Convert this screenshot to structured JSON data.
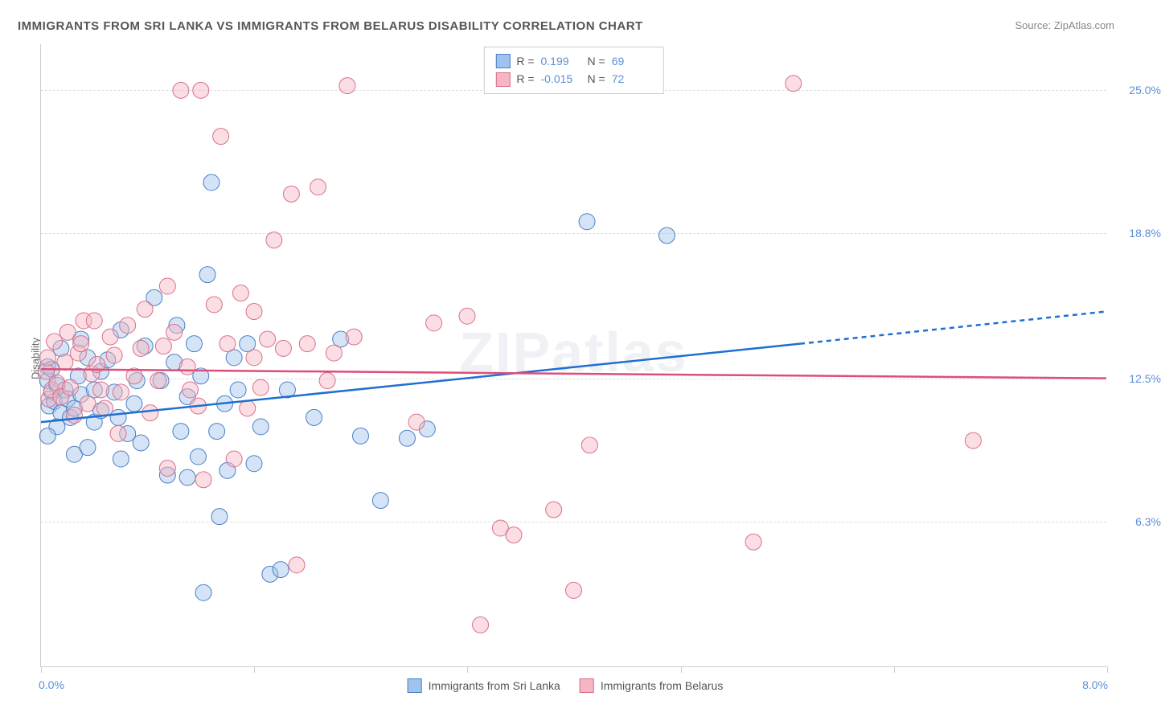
{
  "title": "IMMIGRANTS FROM SRI LANKA VS IMMIGRANTS FROM BELARUS DISABILITY CORRELATION CHART",
  "source": "Source: ZipAtlas.com",
  "y_axis_title": "Disability",
  "watermark": "ZIPatlas",
  "chart": {
    "type": "scatter",
    "background_color": "#ffffff",
    "grid_color": "#dddddd",
    "border_color": "#cccccc",
    "xlim": [
      0.0,
      8.0
    ],
    "ylim": [
      0.0,
      27.0
    ],
    "x_min_label": "0.0%",
    "x_max_label": "8.0%",
    "x_ticks": [
      0.0,
      1.6,
      3.2,
      4.8,
      6.4,
      8.0
    ],
    "y_gridlines": [
      6.3,
      12.5,
      18.8,
      25.0
    ],
    "y_labels": [
      "6.3%",
      "12.5%",
      "18.8%",
      "25.0%"
    ],
    "marker_radius": 10,
    "marker_opacity": 0.45,
    "line_width": 2.5,
    "label_fontsize": 14,
    "title_fontsize": 15,
    "label_color": "#5a8fd6"
  },
  "stats": [
    {
      "r": "0.199",
      "n": "69",
      "fill": "#9fc3ec",
      "stroke": "#4a7fc6"
    },
    {
      "r": "-0.015",
      "n": "72",
      "fill": "#f4b6c2",
      "stroke": "#d96f8a"
    }
  ],
  "series": [
    {
      "name": "Immigrants from Sri Lanka",
      "fill": "#9fc3ec",
      "stroke": "#4a7fc6",
      "line_color": "#1f6fd0",
      "trend": {
        "x1": 0.0,
        "y1": 10.6,
        "x2": 5.7,
        "y2": 14.0,
        "x2_dashed": 8.0,
        "y2_dashed": 15.4
      },
      "points": [
        [
          0.05,
          12.4
        ],
        [
          0.05,
          13.0
        ],
        [
          0.06,
          11.3
        ],
        [
          0.08,
          11.9
        ],
        [
          0.08,
          12.9
        ],
        [
          0.1,
          11.5
        ],
        [
          0.12,
          10.4
        ],
        [
          0.12,
          12.2
        ],
        [
          0.15,
          11.0
        ],
        [
          0.15,
          13.8
        ],
        [
          0.18,
          12.0
        ],
        [
          0.2,
          11.6
        ],
        [
          0.22,
          10.8
        ],
        [
          0.25,
          9.2
        ],
        [
          0.25,
          11.2
        ],
        [
          0.28,
          12.6
        ],
        [
          0.3,
          11.8
        ],
        [
          0.3,
          14.2
        ],
        [
          0.35,
          13.4
        ],
        [
          0.35,
          9.5
        ],
        [
          0.4,
          12.0
        ],
        [
          0.4,
          10.6
        ],
        [
          0.45,
          11.1
        ],
        [
          0.45,
          12.8
        ],
        [
          0.5,
          13.3
        ],
        [
          0.55,
          11.9
        ],
        [
          0.58,
          10.8
        ],
        [
          0.6,
          9.0
        ],
        [
          0.6,
          14.6
        ],
        [
          0.65,
          10.1
        ],
        [
          0.7,
          11.4
        ],
        [
          0.72,
          12.4
        ],
        [
          0.75,
          9.7
        ],
        [
          0.78,
          13.9
        ],
        [
          0.85,
          16.0
        ],
        [
          0.9,
          12.4
        ],
        [
          0.95,
          8.3
        ],
        [
          1.0,
          13.2
        ],
        [
          1.02,
          14.8
        ],
        [
          1.05,
          10.2
        ],
        [
          1.1,
          8.2
        ],
        [
          1.1,
          11.7
        ],
        [
          1.15,
          14.0
        ],
        [
          1.18,
          9.1
        ],
        [
          1.2,
          12.6
        ],
        [
          1.22,
          3.2
        ],
        [
          1.25,
          17.0
        ],
        [
          1.28,
          21.0
        ],
        [
          1.32,
          10.2
        ],
        [
          1.34,
          6.5
        ],
        [
          1.38,
          11.4
        ],
        [
          1.4,
          8.5
        ],
        [
          1.45,
          13.4
        ],
        [
          1.48,
          12.0
        ],
        [
          1.55,
          14.0
        ],
        [
          1.6,
          8.8
        ],
        [
          1.65,
          10.4
        ],
        [
          1.72,
          4.0
        ],
        [
          1.8,
          4.2
        ],
        [
          1.85,
          12.0
        ],
        [
          2.05,
          10.8
        ],
        [
          2.25,
          14.2
        ],
        [
          2.4,
          10.0
        ],
        [
          2.55,
          7.2
        ],
        [
          2.75,
          9.9
        ],
        [
          2.9,
          10.3
        ],
        [
          4.1,
          19.3
        ],
        [
          4.7,
          18.7
        ],
        [
          0.05,
          10.0
        ]
      ]
    },
    {
      "name": "Immigrants from Belarus",
      "fill": "#f4b6c2",
      "stroke": "#d96f8a",
      "line_color": "#de4d7a",
      "trend": {
        "x1": 0.0,
        "y1": 12.9,
        "x2": 8.0,
        "y2": 12.5
      },
      "points": [
        [
          0.04,
          12.8
        ],
        [
          0.05,
          13.4
        ],
        [
          0.06,
          11.6
        ],
        [
          0.08,
          12.0
        ],
        [
          0.1,
          14.1
        ],
        [
          0.12,
          12.3
        ],
        [
          0.15,
          11.7
        ],
        [
          0.18,
          13.2
        ],
        [
          0.2,
          14.5
        ],
        [
          0.22,
          12.1
        ],
        [
          0.25,
          10.9
        ],
        [
          0.28,
          13.6
        ],
        [
          0.3,
          14.0
        ],
        [
          0.32,
          15.0
        ],
        [
          0.35,
          11.4
        ],
        [
          0.38,
          12.7
        ],
        [
          0.42,
          13.1
        ],
        [
          0.45,
          12.0
        ],
        [
          0.48,
          11.2
        ],
        [
          0.52,
          14.3
        ],
        [
          0.55,
          13.5
        ],
        [
          0.58,
          10.1
        ],
        [
          0.6,
          11.9
        ],
        [
          0.65,
          14.8
        ],
        [
          0.7,
          12.6
        ],
        [
          0.75,
          13.8
        ],
        [
          0.78,
          15.5
        ],
        [
          0.82,
          11.0
        ],
        [
          0.88,
          12.4
        ],
        [
          0.92,
          13.9
        ],
        [
          0.95,
          8.6
        ],
        [
          1.0,
          14.5
        ],
        [
          1.05,
          25.0
        ],
        [
          1.1,
          13.0
        ],
        [
          1.12,
          12.0
        ],
        [
          1.18,
          11.3
        ],
        [
          1.2,
          25.0
        ],
        [
          1.22,
          8.1
        ],
        [
          1.3,
          15.7
        ],
        [
          1.35,
          23.0
        ],
        [
          1.4,
          14.0
        ],
        [
          1.45,
          9.0
        ],
        [
          1.5,
          16.2
        ],
        [
          1.55,
          11.2
        ],
        [
          1.6,
          13.4
        ],
        [
          1.6,
          15.4
        ],
        [
          1.65,
          12.1
        ],
        [
          1.7,
          14.2
        ],
        [
          1.75,
          18.5
        ],
        [
          1.82,
          13.8
        ],
        [
          1.88,
          20.5
        ],
        [
          1.92,
          4.4
        ],
        [
          2.0,
          14.0
        ],
        [
          2.08,
          20.8
        ],
        [
          2.15,
          12.4
        ],
        [
          2.2,
          13.6
        ],
        [
          2.3,
          25.2
        ],
        [
          2.35,
          14.3
        ],
        [
          2.82,
          10.6
        ],
        [
          2.95,
          14.9
        ],
        [
          3.2,
          15.2
        ],
        [
          3.3,
          1.8
        ],
        [
          3.45,
          6.0
        ],
        [
          3.55,
          5.7
        ],
        [
          3.85,
          6.8
        ],
        [
          4.0,
          3.3
        ],
        [
          4.12,
          9.6
        ],
        [
          5.35,
          5.4
        ],
        [
          5.65,
          25.3
        ],
        [
          7.0,
          9.8
        ],
        [
          0.4,
          15.0
        ],
        [
          0.95,
          16.5
        ]
      ]
    }
  ]
}
